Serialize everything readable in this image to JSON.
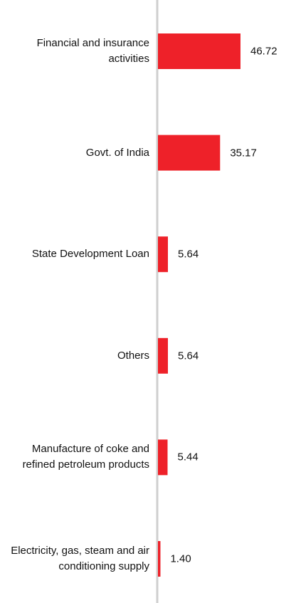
{
  "chart_data": {
    "type": "bar",
    "orientation": "horizontal",
    "categories": [
      "Financial and insurance activities",
      "Govt. of India",
      "State Development Loan",
      "Others",
      "Manufacture of coke and refined petroleum products",
      "Electricity, gas, steam and air conditioning supply"
    ],
    "values": [
      46.72,
      35.17,
      5.64,
      5.64,
      5.44,
      1.4
    ],
    "value_labels": [
      "46.72",
      "35.17",
      "5.64",
      "5.64",
      "5.44",
      "1.40"
    ],
    "color": "#ee2129"
  }
}
